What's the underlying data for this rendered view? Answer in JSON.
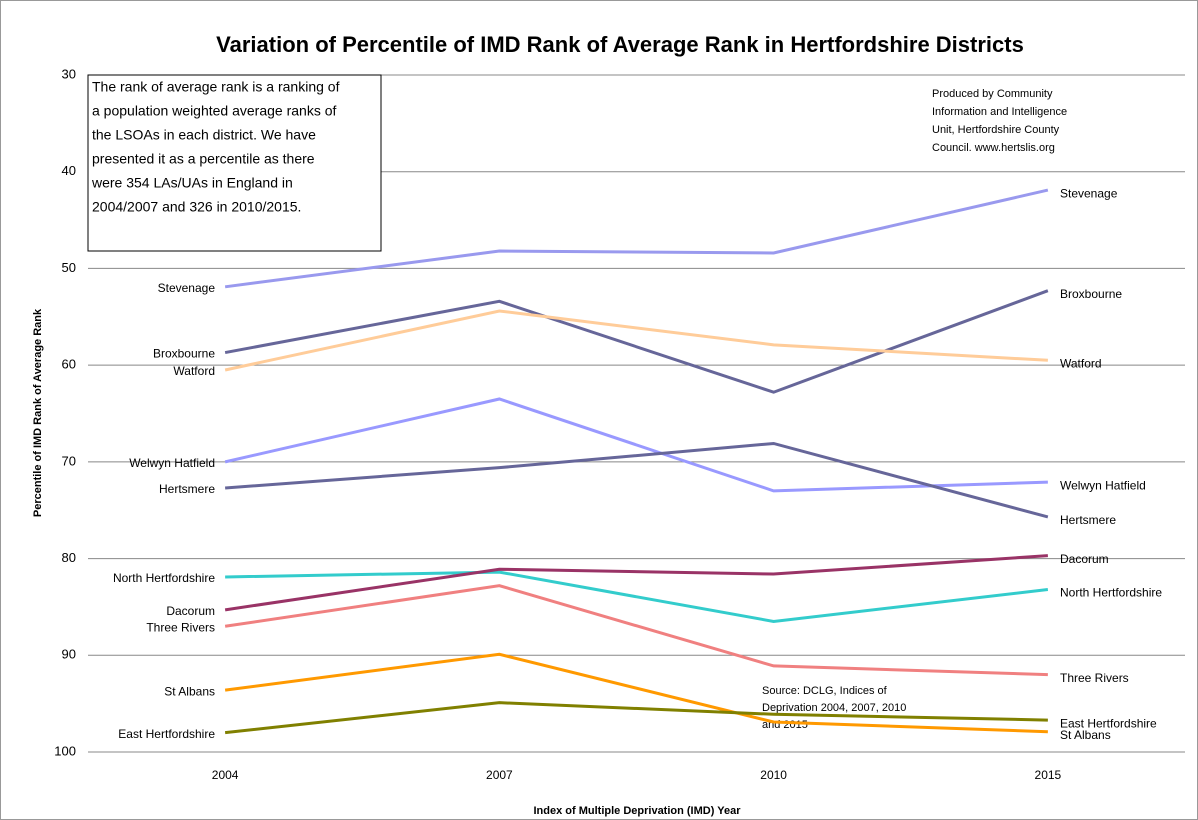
{
  "chart_data": {
    "type": "line",
    "title": "Variation of Percentile of IMD Rank of Average Rank in Hertfordshire Districts",
    "x_label": "Index of Multiple Deprivation (IMD) Year",
    "y_label": "Percentile of IMD Rank of Average Rank",
    "categories": [
      "2004",
      "2007",
      "2010",
      "2015"
    ],
    "ylim": [
      30,
      100
    ],
    "yticks": [
      30,
      40,
      50,
      60,
      70,
      80,
      90,
      100
    ],
    "y_inverted": true,
    "grid": true,
    "annotations": {
      "note": [
        "The rank of average rank is a ranking of",
        "a population weighted average ranks of",
        "the LSOAs in each district. We have",
        "presented it as a percentile as there",
        "were 354 LAs/UAs in England in",
        "2004/2007 and 326 in 2010/2015."
      ],
      "producer": [
        "Produced by Community",
        "Information and Intelligence",
        "Unit, Hertfordshire County",
        "Council.  www.hertslis.org"
      ],
      "source": [
        "Source: DCLG, Indices of",
        "Deprivation 2004, 2007, 2010",
        "and 2015"
      ]
    },
    "series": [
      {
        "name": "Stevenage",
        "color": "#9999ee",
        "values": [
          51.9,
          48.2,
          48.4,
          41.9
        ]
      },
      {
        "name": "Broxbourne",
        "color": "#666699",
        "values": [
          58.7,
          53.4,
          62.8,
          52.3
        ]
      },
      {
        "name": "Watford",
        "color": "#ffcc99",
        "values": [
          60.5,
          54.4,
          57.9,
          59.5
        ]
      },
      {
        "name": "Welwyn Hatfield",
        "color": "#9999ff",
        "values": [
          70.0,
          63.5,
          73.0,
          72.1
        ]
      },
      {
        "name": "Hertsmere",
        "color": "#666699",
        "values": [
          72.7,
          70.6,
          68.1,
          75.7
        ]
      },
      {
        "name": "North Hertfordshire",
        "color": "#33cccc",
        "values": [
          81.9,
          81.4,
          86.5,
          83.2
        ]
      },
      {
        "name": "Dacorum",
        "color": "#993366",
        "values": [
          85.3,
          81.1,
          81.6,
          79.7
        ]
      },
      {
        "name": "Three Rivers",
        "color": "#f08080",
        "values": [
          87.0,
          82.8,
          91.1,
          92.0
        ]
      },
      {
        "name": "St Albans",
        "color": "#ff9900",
        "values": [
          93.6,
          89.9,
          96.9,
          97.9
        ]
      },
      {
        "name": "East Hertfordshire",
        "color": "#808000",
        "values": [
          98.0,
          94.9,
          96.1,
          96.7
        ]
      }
    ]
  }
}
